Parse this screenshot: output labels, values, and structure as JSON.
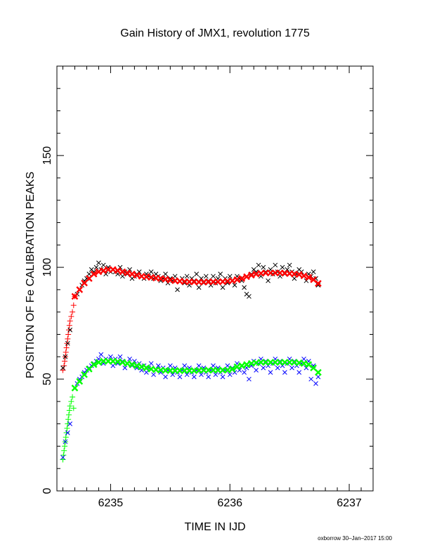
{
  "chart_data": {
    "type": "scatter",
    "title": "Gain History of JMX1, revolution 1775",
    "xlabel": "TIME IN IJD",
    "ylabel": "POSITION OF Fe CALIBRATION PEAKS",
    "xlim": [
      6234.55,
      6237.2
    ],
    "ylim": [
      0,
      190
    ],
    "x_ticks": [
      6235,
      6236,
      6237
    ],
    "y_ticks": [
      0,
      50,
      100,
      150
    ],
    "footer": "oxborrow 30–Jan–2017 15:00",
    "colors": {
      "black": "#000000",
      "red": "#ff0000",
      "blue": "#0000ff",
      "green": "#00ff00"
    },
    "series": [
      {
        "marker": "plus",
        "color": "#ff0000",
        "x": [
          6234.6,
          6234.61,
          6234.615,
          6234.62,
          6234.625,
          6234.63,
          6234.635,
          6234.64,
          6234.645,
          6234.65,
          6234.655,
          6234.66,
          6234.67,
          6234.68,
          6234.69,
          6234.7
        ],
        "y": [
          54,
          56,
          58,
          60,
          62,
          64,
          66,
          68,
          70,
          72,
          74,
          76,
          78,
          80,
          83,
          87
        ]
      },
      {
        "marker": "cross",
        "color": "#000000",
        "x": [
          6234.6,
          6234.62,
          6234.64,
          6234.66,
          6234.7,
          6234.72,
          6234.74,
          6234.76,
          6234.78,
          6234.8,
          6234.82,
          6234.84,
          6234.86,
          6234.88,
          6234.9,
          6234.92,
          6234.94,
          6234.96,
          6234.98,
          6235.0,
          6235.02,
          6235.04,
          6235.06,
          6235.08,
          6235.1,
          6235.12,
          6235.14,
          6235.16,
          6235.18,
          6235.2,
          6235.22,
          6235.24,
          6235.26,
          6235.28,
          6235.3,
          6235.32,
          6235.34,
          6235.36,
          6235.38,
          6235.4,
          6235.42,
          6235.44,
          6235.46,
          6235.48,
          6235.5,
          6235.52,
          6235.54,
          6235.56,
          6235.58,
          6235.6,
          6235.62,
          6235.64,
          6235.66,
          6235.68,
          6235.7,
          6235.72,
          6235.74,
          6235.76,
          6235.78,
          6235.8,
          6235.82,
          6235.84,
          6235.86,
          6235.88,
          6235.9,
          6235.92,
          6235.94,
          6235.96,
          6235.98,
          6236.0,
          6236.02,
          6236.04,
          6236.06,
          6236.08,
          6236.1,
          6236.12,
          6236.14,
          6236.16,
          6236.18,
          6236.2,
          6236.22,
          6236.24,
          6236.26,
          6236.28,
          6236.3,
          6236.32,
          6236.34,
          6236.36,
          6236.38,
          6236.4,
          6236.42,
          6236.44,
          6236.46,
          6236.48,
          6236.5,
          6236.52,
          6236.54,
          6236.56,
          6236.58,
          6236.6,
          6236.62,
          6236.64,
          6236.66,
          6236.68,
          6236.7,
          6236.72,
          6236.74
        ],
        "y": [
          55,
          60,
          66,
          72,
          87,
          88,
          90,
          92,
          94,
          95,
          97,
          99,
          98,
          100,
          102,
          99,
          101,
          97,
          100,
          98,
          99,
          98,
          97,
          100,
          96,
          98,
          97,
          99,
          95,
          96,
          97,
          98,
          96,
          95,
          97,
          96,
          98,
          95,
          97,
          96,
          94,
          95,
          97,
          93,
          95,
          94,
          96,
          90,
          94,
          95,
          93,
          96,
          92,
          95,
          94,
          97,
          91,
          95,
          93,
          96,
          94,
          92,
          96,
          93,
          95,
          97,
          91,
          95,
          93,
          96,
          94,
          92,
          96,
          95,
          94,
          91,
          88,
          87,
          97,
          99,
          98,
          101,
          96,
          100,
          98,
          94,
          99,
          97,
          101,
          98,
          96,
          100,
          97,
          99,
          101,
          98,
          95,
          97,
          99,
          98,
          96,
          94,
          97,
          96,
          98,
          95,
          92
        ]
      },
      {
        "marker": "plus",
        "color": "#00ff00",
        "x": [
          6234.6,
          6234.605,
          6234.61,
          6234.615,
          6234.62,
          6234.625,
          6234.63,
          6234.635,
          6234.64,
          6234.645,
          6234.65,
          6234.655,
          6234.66,
          6234.67,
          6234.68,
          6234.69
        ],
        "y": [
          14,
          16,
          18,
          20,
          22,
          24,
          26,
          28,
          30,
          32,
          34,
          36,
          38,
          40,
          42,
          37
        ]
      },
      {
        "marker": "cross",
        "color": "#0000ff",
        "x": [
          6234.6,
          6234.62,
          6234.64,
          6234.66,
          6234.72,
          6234.74,
          6234.76,
          6234.78,
          6234.8,
          6234.82,
          6234.84,
          6234.86,
          6234.88,
          6234.9,
          6234.92,
          6234.94,
          6234.96,
          6234.98,
          6235.0,
          6235.02,
          6235.04,
          6235.06,
          6235.08,
          6235.1,
          6235.12,
          6235.14,
          6235.16,
          6235.18,
          6235.2,
          6235.22,
          6235.24,
          6235.26,
          6235.28,
          6235.3,
          6235.32,
          6235.34,
          6235.36,
          6235.38,
          6235.4,
          6235.42,
          6235.44,
          6235.46,
          6235.48,
          6235.5,
          6235.52,
          6235.54,
          6235.56,
          6235.58,
          6235.6,
          6235.62,
          6235.64,
          6235.66,
          6235.68,
          6235.7,
          6235.72,
          6235.74,
          6235.76,
          6235.78,
          6235.8,
          6235.82,
          6235.84,
          6235.86,
          6235.88,
          6235.9,
          6235.92,
          6235.94,
          6235.96,
          6235.98,
          6236.0,
          6236.02,
          6236.04,
          6236.06,
          6236.08,
          6236.1,
          6236.12,
          6236.14,
          6236.16,
          6236.18,
          6236.2,
          6236.22,
          6236.24,
          6236.26,
          6236.28,
          6236.3,
          6236.32,
          6236.34,
          6236.36,
          6236.38,
          6236.4,
          6236.42,
          6236.44,
          6236.46,
          6236.48,
          6236.5,
          6236.52,
          6236.54,
          6236.56,
          6236.58,
          6236.6,
          6236.62,
          6236.64,
          6236.66,
          6236.68,
          6236.7,
          6236.72,
          6236.74
        ],
        "y": [
          15,
          22,
          26,
          30,
          48,
          50,
          51,
          53,
          54,
          55,
          56,
          57,
          58,
          59,
          61,
          57,
          59,
          58,
          60,
          56,
          59,
          57,
          60,
          58,
          55,
          57,
          59,
          56,
          58,
          55,
          57,
          54,
          56,
          53,
          55,
          57,
          52,
          54,
          56,
          53,
          55,
          51,
          54,
          56,
          52,
          55,
          53,
          51,
          54,
          56,
          52,
          55,
          53,
          51,
          54,
          56,
          52,
          55,
          53,
          51,
          54,
          56,
          52,
          55,
          53,
          51,
          54,
          56,
          52,
          55,
          53,
          57,
          54,
          56,
          53,
          55,
          50,
          56,
          58,
          54,
          57,
          59,
          55,
          58,
          56,
          53,
          57,
          59,
          55,
          58,
          56,
          53,
          57,
          59,
          55,
          58,
          56,
          53,
          57,
          59,
          55,
          58,
          50,
          56,
          48,
          51
        ]
      },
      {
        "marker": "cross",
        "color": "#ff0000",
        "x": [
          6234.7,
          6234.74,
          6234.78,
          6234.82,
          6234.86,
          6234.9,
          6234.94,
          6234.98,
          6235.02,
          6235.06,
          6235.1,
          6235.14,
          6235.18,
          6235.22,
          6235.26,
          6235.3,
          6235.34,
          6235.38,
          6235.42,
          6235.46,
          6235.5,
          6235.54,
          6235.58,
          6235.62,
          6235.66,
          6235.7,
          6235.74,
          6235.78,
          6235.82,
          6235.86,
          6235.9,
          6235.94,
          6235.98,
          6236.02,
          6236.06,
          6236.1,
          6236.14,
          6236.18,
          6236.22,
          6236.26,
          6236.3,
          6236.34,
          6236.38,
          6236.42,
          6236.46,
          6236.5,
          6236.54,
          6236.58,
          6236.62,
          6236.66,
          6236.7,
          6236.74
        ],
        "y": [
          87,
          90,
          93,
          95,
          97,
          98,
          98.5,
          99,
          99,
          98.5,
          98,
          97.5,
          97,
          96.5,
          96,
          95.8,
          95.5,
          95.2,
          95,
          94.7,
          94.3,
          94,
          93.8,
          93.6,
          93.5,
          93.5,
          93.4,
          93.4,
          93.5,
          93.5,
          93.5,
          93.6,
          93.8,
          94,
          94.5,
          95,
          95.8,
          96.5,
          97,
          97.3,
          97.5,
          97.5,
          97.5,
          97.5,
          97.4,
          97.2,
          97,
          96.8,
          96.2,
          95.5,
          94.5,
          92.8
        ]
      },
      {
        "marker": "cross",
        "color": "#00ff00",
        "x": [
          6234.7,
          6234.74,
          6234.78,
          6234.82,
          6234.86,
          6234.9,
          6234.94,
          6234.98,
          6235.02,
          6235.06,
          6235.1,
          6235.14,
          6235.18,
          6235.22,
          6235.26,
          6235.3,
          6235.34,
          6235.38,
          6235.42,
          6235.46,
          6235.5,
          6235.54,
          6235.58,
          6235.62,
          6235.66,
          6235.7,
          6235.74,
          6235.78,
          6235.82,
          6235.86,
          6235.9,
          6235.94,
          6235.98,
          6236.02,
          6236.06,
          6236.1,
          6236.14,
          6236.18,
          6236.22,
          6236.26,
          6236.3,
          6236.34,
          6236.38,
          6236.42,
          6236.46,
          6236.5,
          6236.54,
          6236.58,
          6236.62,
          6236.66,
          6236.7,
          6236.74
        ],
        "y": [
          46,
          49,
          52,
          54.5,
          56.5,
          57.5,
          58,
          58,
          58,
          57.8,
          57.5,
          57,
          56.5,
          56,
          55.5,
          55,
          54.5,
          54.2,
          54,
          53.9,
          53.8,
          53.8,
          53.8,
          53.8,
          53.8,
          53.8,
          53.9,
          54,
          54,
          54,
          54,
          54,
          54,
          54.5,
          55.5,
          56,
          56.5,
          57,
          57.3,
          57.5,
          57.5,
          57.5,
          57.5,
          57.5,
          57.5,
          57.5,
          57.5,
          57.3,
          57,
          56.5,
          55,
          53
        ]
      }
    ]
  }
}
